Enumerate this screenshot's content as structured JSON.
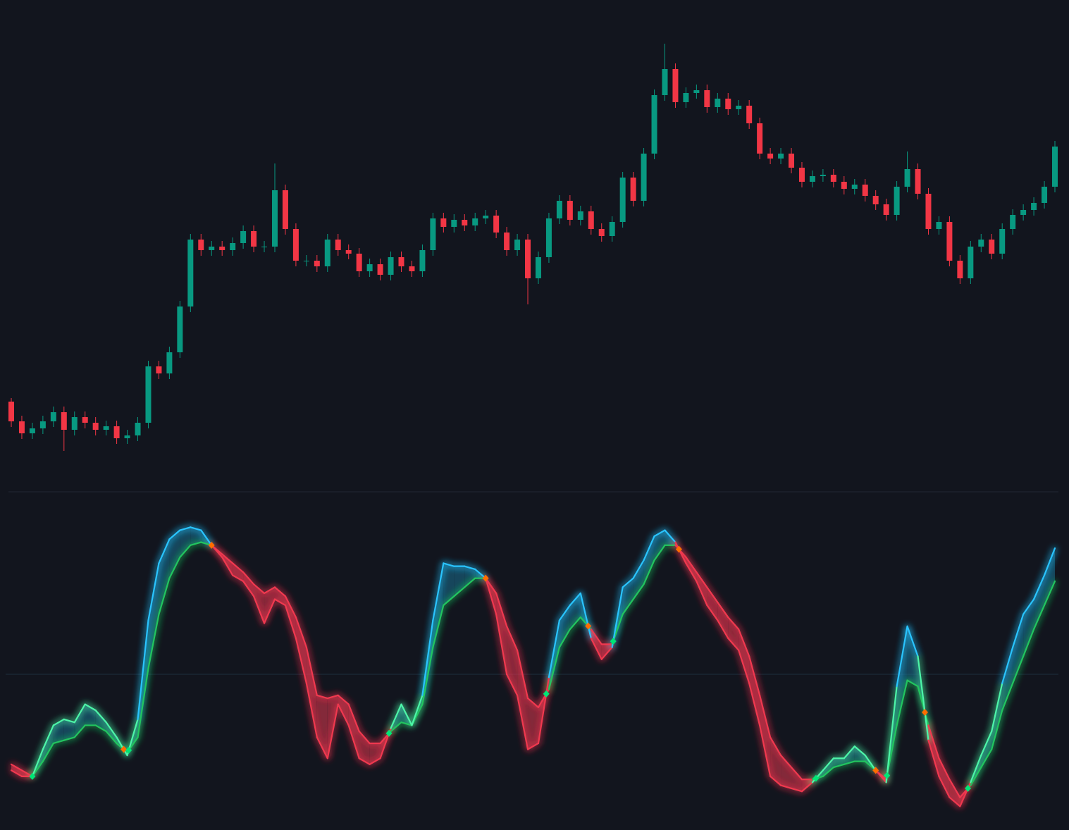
{
  "chart_data": [
    {
      "type": "candlestick",
      "categories": [
        null,
        null,
        null,
        null,
        null,
        null,
        null,
        null,
        null,
        null,
        null,
        null,
        null,
        null,
        null,
        null,
        null,
        null,
        null,
        null,
        null,
        null,
        null,
        null,
        null,
        null,
        null,
        null,
        null,
        null,
        null,
        null,
        null,
        null,
        null,
        null,
        null,
        null,
        null,
        null,
        null,
        null,
        null,
        null,
        null,
        null,
        null,
        null,
        null,
        null,
        null,
        null,
        null,
        null,
        null,
        null,
        null,
        null,
        null,
        null,
        null,
        null,
        null,
        null,
        null,
        null,
        null,
        null,
        null,
        null,
        null,
        null,
        null,
        null,
        null,
        null,
        null,
        null,
        null,
        null,
        null,
        null,
        null,
        null,
        null,
        null,
        null,
        null,
        null,
        null,
        null,
        null,
        null,
        null,
        null,
        null,
        null,
        null,
        null,
        null
      ],
      "open": [
        130,
        102,
        85,
        92,
        102,
        115,
        90,
        108,
        100,
        90,
        95,
        78,
        82,
        100,
        180,
        170,
        200,
        265,
        360,
        345,
        350,
        345,
        355,
        372,
        350,
        350,
        430,
        375,
        330,
        330,
        322,
        360,
        345,
        340,
        315,
        325,
        310,
        335,
        322,
        315,
        345,
        390,
        378,
        388,
        380,
        390,
        394,
        370,
        345,
        360,
        305,
        335,
        390,
        415,
        388,
        400,
        375,
        365,
        385,
        448,
        415,
        482,
        565,
        602,
        555,
        568,
        572,
        548,
        560,
        545,
        550,
        525,
        482,
        475,
        482,
        462,
        442,
        450,
        452,
        442,
        432,
        438,
        422,
        410,
        395,
        435,
        460,
        425,
        375,
        385,
        330,
        305,
        350,
        360,
        340,
        375,
        395,
        402,
        412,
        435
      ],
      "high": [
        135,
        110,
        100,
        110,
        123,
        123,
        116,
        116,
        108,
        103,
        103,
        90,
        108,
        188,
        188,
        208,
        273,
        368,
        368,
        358,
        358,
        363,
        380,
        380,
        358,
        468,
        438,
        383,
        338,
        338,
        368,
        368,
        353,
        348,
        333,
        333,
        343,
        343,
        330,
        353,
        398,
        398,
        396,
        396,
        398,
        402,
        402,
        378,
        368,
        368,
        343,
        398,
        423,
        423,
        408,
        408,
        383,
        393,
        456,
        456,
        490,
        573,
        638,
        610,
        576,
        580,
        580,
        568,
        568,
        558,
        558,
        533,
        490,
        490,
        490,
        470,
        458,
        460,
        460,
        450,
        446,
        446,
        430,
        418,
        443,
        485,
        468,
        433,
        393,
        393,
        338,
        358,
        368,
        368,
        383,
        403,
        410,
        420,
        443,
        500
      ],
      "low": [
        94,
        77,
        77,
        84,
        94,
        60,
        82,
        92,
        82,
        82,
        70,
        70,
        74,
        92,
        162,
        162,
        192,
        257,
        337,
        337,
        337,
        337,
        347,
        342,
        342,
        342,
        367,
        322,
        322,
        314,
        314,
        337,
        332,
        307,
        307,
        302,
        302,
        314,
        307,
        307,
        337,
        370,
        370,
        372,
        372,
        382,
        362,
        337,
        337,
        268,
        297,
        327,
        382,
        380,
        380,
        367,
        357,
        357,
        377,
        407,
        407,
        474,
        557,
        547,
        547,
        560,
        540,
        540,
        537,
        537,
        517,
        474,
        467,
        467,
        454,
        434,
        434,
        442,
        434,
        424,
        424,
        414,
        402,
        387,
        387,
        427,
        417,
        367,
        367,
        322,
        297,
        297,
        342,
        332,
        332,
        367,
        387,
        394,
        404,
        427
      ],
      "close": [
        102,
        85,
        92,
        102,
        115,
        90,
        108,
        100,
        90,
        95,
        78,
        82,
        100,
        180,
        170,
        200,
        265,
        360,
        345,
        350,
        345,
        355,
        372,
        350,
        350,
        430,
        375,
        330,
        330,
        322,
        360,
        345,
        340,
        315,
        325,
        310,
        335,
        322,
        315,
        345,
        390,
        378,
        388,
        380,
        390,
        394,
        370,
        345,
        360,
        305,
        335,
        390,
        415,
        388,
        400,
        375,
        365,
        385,
        448,
        415,
        482,
        565,
        602,
        555,
        568,
        572,
        548,
        560,
        545,
        550,
        525,
        482,
        475,
        482,
        462,
        442,
        450,
        452,
        442,
        432,
        438,
        422,
        410,
        395,
        435,
        460,
        425,
        375,
        385,
        330,
        305,
        350,
        360,
        340,
        375,
        395,
        402,
        412,
        435,
        492
      ],
      "ylim": [
        0,
        660
      ],
      "up_color": "#089981",
      "down_color": "#f23645"
    },
    {
      "type": "line",
      "categories": [
        null,
        null,
        null,
        null,
        null,
        null,
        null,
        null,
        null,
        null,
        null,
        null,
        null,
        null,
        null,
        null,
        null,
        null,
        null,
        null,
        null,
        null,
        null,
        null,
        null,
        null,
        null,
        null,
        null,
        null,
        null,
        null,
        null,
        null,
        null,
        null,
        null,
        null,
        null,
        null,
        null,
        null,
        null,
        null,
        null,
        null,
        null,
        null,
        null,
        null,
        null,
        null,
        null,
        null,
        null,
        null,
        null,
        null,
        null,
        null,
        null,
        null,
        null,
        null,
        null,
        null,
        null,
        null,
        null,
        null,
        null,
        null,
        null,
        null,
        null,
        null,
        null,
        null,
        null,
        null,
        null,
        null,
        null,
        null,
        null,
        null,
        null,
        null,
        null,
        null,
        null,
        null,
        null,
        null,
        null,
        null,
        null,
        null,
        null,
        null
      ],
      "series": [
        {
          "color": "#29c4ff",
          "low_color": "#4df5a8",
          "values": [
            18,
            16,
            16,
            25,
            33,
            35,
            34,
            40,
            38,
            34,
            29,
            23,
            35,
            68,
            87,
            95,
            98,
            99,
            98,
            93,
            89,
            83,
            81,
            76,
            67,
            75,
            73,
            62,
            47,
            29,
            22,
            40,
            33,
            22,
            20,
            22,
            32,
            40,
            33,
            43,
            68,
            87,
            86,
            86,
            85,
            82,
            70,
            50,
            43,
            25,
            27,
            49,
            68,
            73,
            77,
            62,
            55,
            59,
            79,
            82,
            88,
            96,
            98,
            94,
            87,
            81,
            73,
            68,
            62,
            58,
            47,
            33,
            16,
            13,
            12,
            11,
            14,
            18,
            22,
            22,
            26,
            23,
            18,
            14,
            46,
            66,
            56,
            28,
            16,
            9,
            6,
            14,
            23,
            31,
            47,
            59,
            70,
            75,
            83,
            92
          ]
        },
        {
          "color": "#22c55e",
          "values": [
            20,
            18,
            16,
            21,
            27,
            28,
            29,
            33,
            33,
            31,
            27,
            24,
            29,
            52,
            70,
            82,
            89,
            93,
            94,
            93,
            90,
            87,
            84,
            80,
            77,
            79,
            76,
            69,
            59,
            43,
            42,
            43,
            40,
            31,
            27,
            27,
            31,
            34,
            33,
            40,
            59,
            73,
            76,
            79,
            82,
            82,
            77,
            66,
            58,
            42,
            39,
            45,
            59,
            65,
            69,
            65,
            60,
            60,
            70,
            75,
            80,
            88,
            93,
            93,
            89,
            84,
            79,
            74,
            69,
            65,
            56,
            43,
            29,
            23,
            19,
            15,
            15,
            16,
            19,
            20,
            21,
            21,
            18,
            15,
            33,
            48,
            46,
            33,
            22,
            15,
            9,
            13,
            19,
            25,
            38,
            47,
            56,
            65,
            73,
            81
          ]
        }
      ],
      "ylim": [
        0,
        100
      ],
      "reference_line": 50,
      "bull_fill": "#1b6f8f",
      "bear_fill": "#e23a52",
      "bear_color": "#f0384f",
      "bull_signal_color": "#00e676",
      "bear_signal_color": "#ff6d00"
    }
  ]
}
